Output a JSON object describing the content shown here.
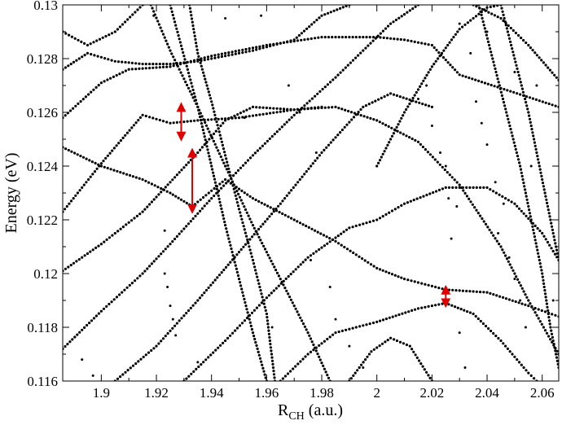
{
  "chart_data": {
    "type": "scatter",
    "title": "",
    "xlabel": "R",
    "xlabel_sub": "CH",
    "xlabel_unit": " (a.u.)",
    "ylabel": "Energy (eV)",
    "xlim": [
      1.886,
      2.066
    ],
    "ylim": [
      0.116,
      0.13
    ],
    "x_ticks": [
      {
        "value": 1.9,
        "label": "1.9"
      },
      {
        "value": 1.92,
        "label": "1.92"
      },
      {
        "value": 1.94,
        "label": "1.94"
      },
      {
        "value": 1.96,
        "label": "1.96"
      },
      {
        "value": 1.98,
        "label": "1.98"
      },
      {
        "value": 2.0,
        "label": "2"
      },
      {
        "value": 2.02,
        "label": "2.02"
      },
      {
        "value": 2.04,
        "label": "2.04"
      },
      {
        "value": 2.06,
        "label": "2.06"
      }
    ],
    "y_ticks": [
      {
        "value": 0.116,
        "label": "0.116"
      },
      {
        "value": 0.118,
        "label": "0.118"
      },
      {
        "value": 0.12,
        "label": "0.12"
      },
      {
        "value": 0.122,
        "label": "0.122"
      },
      {
        "value": 0.124,
        "label": "0.124"
      },
      {
        "value": 0.126,
        "label": "0.126"
      },
      {
        "value": 0.128,
        "label": "0.128"
      },
      {
        "value": 0.13,
        "label": "0.13"
      }
    ],
    "marker_color": "#000000",
    "arrow_color": "#e00000",
    "series": [
      {
        "points": [
          [
            1.886,
            0.1247
          ],
          [
            1.9,
            0.124
          ],
          [
            1.915,
            0.1235
          ],
          [
            1.925,
            0.123
          ],
          [
            1.933,
            0.1225
          ],
          [
            1.945,
            0.1235
          ],
          [
            1.955,
            0.1228
          ],
          [
            1.97,
            0.122
          ],
          [
            1.985,
            0.1212
          ],
          [
            2.0,
            0.1202
          ],
          [
            2.01,
            0.1198
          ],
          [
            2.025,
            0.1194
          ],
          [
            2.04,
            0.1193
          ],
          [
            2.055,
            0.1188
          ],
          [
            2.066,
            0.1184
          ]
        ]
      },
      {
        "points": [
          [
            1.886,
            0.1223
          ],
          [
            1.9,
            0.1241
          ],
          [
            1.915,
            0.1259
          ],
          [
            1.925,
            0.1256
          ],
          [
            1.935,
            0.1257
          ],
          [
            1.95,
            0.1258
          ],
          [
            1.97,
            0.1261
          ],
          [
            1.985,
            0.1262
          ],
          [
            2.0,
            0.1257
          ],
          [
            2.015,
            0.1249
          ],
          [
            2.03,
            0.1233
          ],
          [
            2.045,
            0.121
          ],
          [
            2.055,
            0.119
          ],
          [
            2.066,
            0.117
          ]
        ]
      },
      {
        "points": [
          [
            1.886,
            0.1258
          ],
          [
            1.9,
            0.1271
          ],
          [
            1.91,
            0.1276
          ],
          [
            1.925,
            0.1277
          ],
          [
            1.94,
            0.1281
          ],
          [
            1.96,
            0.1285
          ],
          [
            1.98,
            0.1288
          ],
          [
            2.0,
            0.1288
          ],
          [
            2.01,
            0.1287
          ],
          [
            2.02,
            0.1285
          ],
          [
            2.03,
            0.1274
          ],
          [
            2.045,
            0.1269
          ],
          [
            2.066,
            0.1262
          ]
        ]
      },
      {
        "points": [
          [
            1.886,
            0.1276
          ],
          [
            1.895,
            0.1282
          ],
          [
            1.905,
            0.1279
          ],
          [
            1.915,
            0.1278
          ],
          [
            1.925,
            0.1278
          ],
          [
            1.935,
            0.1279
          ],
          [
            1.955,
            0.1283
          ],
          [
            1.97,
            0.1287
          ],
          [
            1.98,
            0.1296
          ],
          [
            1.99,
            0.13
          ]
        ]
      },
      {
        "points": [
          [
            1.886,
            0.1201
          ],
          [
            1.9,
            0.1211
          ],
          [
            1.915,
            0.1223
          ],
          [
            1.925,
            0.1234
          ],
          [
            1.935,
            0.1245
          ],
          [
            1.945,
            0.1257
          ],
          [
            1.955,
            0.1262
          ],
          [
            1.97,
            0.1261
          ],
          [
            1.98,
            0.1262
          ]
        ]
      },
      {
        "points": [
          [
            1.886,
            0.1172
          ],
          [
            1.9,
            0.1186
          ],
          [
            1.915,
            0.12
          ],
          [
            1.925,
            0.1211
          ],
          [
            1.94,
            0.1228
          ],
          [
            1.955,
            0.1244
          ],
          [
            1.97,
            0.1259
          ],
          [
            1.985,
            0.1273
          ],
          [
            1.995,
            0.1283
          ],
          [
            2.005,
            0.1293
          ],
          [
            2.015,
            0.13
          ]
        ]
      },
      {
        "points": [
          [
            1.886,
            0.129
          ],
          [
            1.895,
            0.1285
          ],
          [
            1.905,
            0.129
          ],
          [
            1.915,
            0.13
          ]
        ]
      },
      {
        "points": [
          [
            1.905,
            0.116
          ],
          [
            1.92,
            0.1173
          ],
          [
            1.935,
            0.119
          ],
          [
            1.95,
            0.1208
          ],
          [
            1.965,
            0.1226
          ],
          [
            1.98,
            0.1245
          ],
          [
            1.995,
            0.1262
          ],
          [
            2.005,
            0.1267
          ],
          [
            2.02,
            0.1262
          ]
        ]
      },
      {
        "points": [
          [
            1.93,
            0.116
          ],
          [
            1.945,
            0.1175
          ],
          [
            1.96,
            0.1191
          ],
          [
            1.975,
            0.1206
          ],
          [
            1.99,
            0.1217
          ],
          [
            2.0,
            0.122
          ],
          [
            2.01,
            0.1226
          ],
          [
            2.025,
            0.1232
          ],
          [
            2.04,
            0.1232
          ],
          [
            2.05,
            0.1226
          ],
          [
            2.06,
            0.1215
          ],
          [
            2.066,
            0.1205
          ]
        ]
      },
      {
        "points": [
          [
            1.965,
            0.116
          ],
          [
            1.975,
            0.117
          ],
          [
            1.985,
            0.1178
          ],
          [
            2.0,
            0.1182
          ],
          [
            2.015,
            0.1187
          ],
          [
            2.025,
            0.1189
          ],
          [
            2.035,
            0.1185
          ],
          [
            2.045,
            0.1175
          ],
          [
            2.055,
            0.1163
          ],
          [
            2.058,
            0.116
          ]
        ]
      },
      {
        "points": [
          [
            1.99,
            0.116
          ],
          [
            1.998,
            0.1171
          ],
          [
            2.005,
            0.1176
          ],
          [
            2.012,
            0.1173
          ],
          [
            2.02,
            0.116
          ]
        ]
      },
      {
        "points": [
          [
            2.0,
            0.124
          ],
          [
            2.01,
            0.126
          ],
          [
            2.02,
            0.1277
          ],
          [
            2.03,
            0.1291
          ],
          [
            2.04,
            0.1299
          ],
          [
            2.045,
            0.13
          ]
        ]
      },
      {
        "points": [
          [
            2.035,
            0.13
          ],
          [
            2.045,
            0.1295
          ],
          [
            2.055,
            0.1285
          ],
          [
            2.066,
            0.1272
          ]
        ]
      },
      {
        "points": [
          [
            1.918,
            0.13
          ],
          [
            1.925,
            0.1283
          ],
          [
            1.935,
            0.1262
          ],
          [
            1.945,
            0.124
          ],
          [
            1.955,
            0.1218
          ],
          [
            1.965,
            0.1198
          ],
          [
            1.975,
            0.1178
          ],
          [
            1.983,
            0.116
          ]
        ]
      },
      {
        "points": [
          [
            1.925,
            0.13
          ],
          [
            1.93,
            0.1281
          ],
          [
            1.935,
            0.1262
          ],
          [
            1.94,
            0.124
          ],
          [
            1.945,
            0.1218
          ],
          [
            1.95,
            0.1198
          ],
          [
            1.955,
            0.1178
          ],
          [
            1.96,
            0.116
          ]
        ]
      },
      {
        "points": [
          [
            1.932,
            0.13
          ],
          [
            1.935,
            0.1282
          ],
          [
            1.94,
            0.1264
          ],
          [
            1.945,
            0.1244
          ],
          [
            1.95,
            0.1224
          ],
          [
            1.955,
            0.1205
          ],
          [
            1.96,
            0.1185
          ],
          [
            1.963,
            0.116
          ]
        ]
      },
      {
        "points": [
          [
            2.037,
            0.13
          ],
          [
            2.042,
            0.128
          ],
          [
            2.047,
            0.126
          ],
          [
            2.052,
            0.124
          ],
          [
            2.056,
            0.122
          ],
          [
            2.06,
            0.12
          ],
          [
            2.063,
            0.118
          ],
          [
            2.066,
            0.1165
          ]
        ]
      },
      {
        "points": [
          [
            2.045,
            0.13
          ],
          [
            2.05,
            0.128
          ],
          [
            2.055,
            0.126
          ],
          [
            2.059,
            0.124
          ],
          [
            2.063,
            0.122
          ],
          [
            2.066,
            0.1205
          ]
        ]
      }
    ],
    "scatter": [
      [
        1.923,
        0.1216
      ],
      [
        1.923,
        0.12
      ],
      [
        1.924,
        0.1195
      ],
      [
        1.925,
        0.1188
      ],
      [
        1.926,
        0.1183
      ],
      [
        1.927,
        0.1177
      ],
      [
        1.935,
        0.1167
      ],
      [
        1.945,
        0.1295
      ],
      [
        1.968,
        0.127
      ],
      [
        1.972,
        0.126
      ],
      [
        1.978,
        0.1245
      ],
      [
        1.983,
        0.1195
      ],
      [
        1.985,
        0.1183
      ],
      [
        1.99,
        0.1173
      ],
      [
        1.995,
        0.1165
      ],
      [
        2.015,
        0.1265
      ],
      [
        2.02,
        0.1255
      ],
      [
        2.023,
        0.1245
      ],
      [
        2.025,
        0.124
      ],
      [
        2.026,
        0.1228
      ],
      [
        2.027,
        0.1213
      ],
      [
        2.03,
        0.1178
      ],
      [
        2.032,
        0.1165
      ],
      [
        2.036,
        0.1264
      ],
      [
        2.038,
        0.1256
      ],
      [
        2.04,
        0.1248
      ],
      [
        2.043,
        0.1234
      ],
      [
        2.046,
        0.1226
      ],
      [
        2.048,
        0.1206
      ],
      [
        2.05,
        0.1198
      ],
      [
        2.052,
        0.119
      ],
      [
        2.054,
        0.118
      ],
      [
        2.03,
        0.1293
      ],
      [
        2.034,
        0.1282
      ],
      [
        2.05,
        0.1275
      ],
      [
        2.058,
        0.127
      ],
      [
        1.893,
        0.1168
      ],
      [
        1.897,
        0.1162
      ],
      [
        1.919,
        0.1296
      ],
      [
        1.962,
        0.118
      ],
      [
        1.952,
        0.1258
      ],
      [
        1.976,
        0.1205
      ],
      [
        2.018,
        0.127
      ],
      [
        2.029,
        0.1225
      ],
      [
        2.044,
        0.1215
      ],
      [
        2.056,
        0.124
      ],
      [
        2.061,
        0.123
      ],
      [
        2.064,
        0.119
      ],
      [
        1.958,
        0.1296
      ],
      [
        2.04,
        0.129
      ]
    ],
    "arrows": [
      {
        "x": 1.929,
        "y1": 0.1251,
        "y2": 0.1262
      },
      {
        "x": 1.933,
        "y1": 0.1224,
        "y2": 0.1245
      },
      {
        "x": 2.025,
        "y1": 0.1189,
        "y2": 0.1194
      }
    ]
  }
}
